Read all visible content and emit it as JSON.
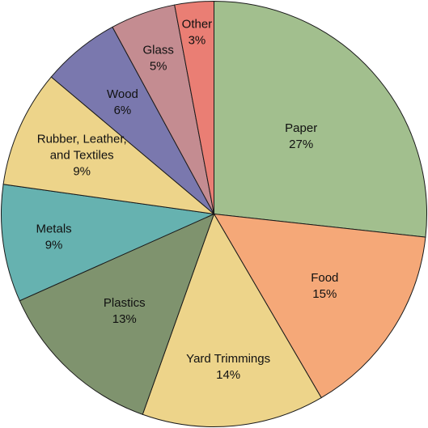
{
  "chart_data": {
    "type": "pie",
    "title": "",
    "start_angle_deg": 0,
    "direction": "clockwise",
    "legend": "none",
    "slices": [
      {
        "label_lines": [
          "Paper"
        ],
        "value": 27,
        "value_label": "27%",
        "color": "#A2BF8E"
      },
      {
        "label_lines": [
          "Food"
        ],
        "value": 15,
        "value_label": "15%",
        "color": "#F5A878"
      },
      {
        "label_lines": [
          "Yard Trimmings"
        ],
        "value": 14,
        "value_label": "14%",
        "color": "#EDD48A"
      },
      {
        "label_lines": [
          "Plastics"
        ],
        "value": 13,
        "value_label": "13%",
        "color": "#7F936E"
      },
      {
        "label_lines": [
          "Metals"
        ],
        "value": 9,
        "value_label": "9%",
        "color": "#66B2B0"
      },
      {
        "label_lines": [
          "Rubber, Leather,",
          "and Textiles"
        ],
        "value": 9,
        "value_label": "9%",
        "color": "#EDD48A"
      },
      {
        "label_lines": [
          "Wood"
        ],
        "value": 6,
        "value_label": "6%",
        "color": "#7A78AE"
      },
      {
        "label_lines": [
          "Glass"
        ],
        "value": 5,
        "value_label": "5%",
        "color": "#C48C91"
      },
      {
        "label_lines": [
          "Other"
        ],
        "value": 3,
        "value_label": "3%",
        "color": "#EA7E74"
      }
    ]
  }
}
